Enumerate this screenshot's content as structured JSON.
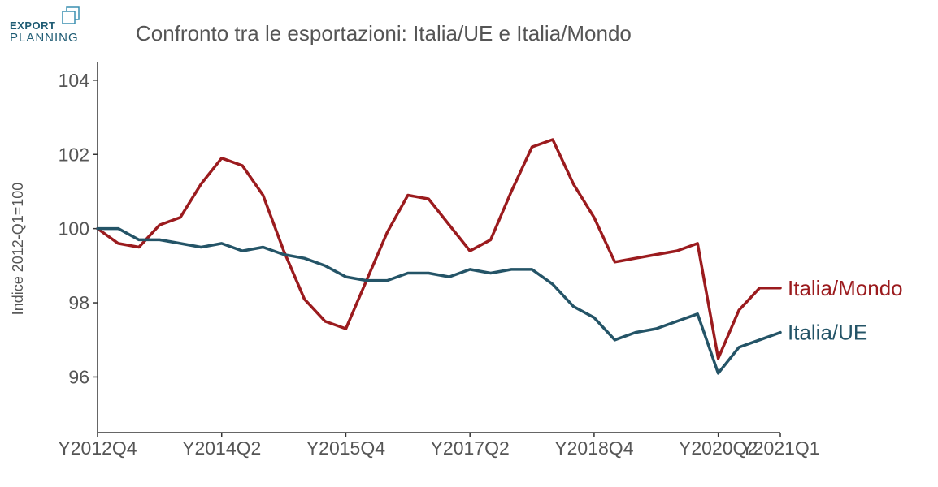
{
  "logo": {
    "line1": "EXPORT",
    "line2": "PLANNING"
  },
  "colors": {
    "mondo": "#9b1b1e",
    "ue": "#245467",
    "axis": "#333333",
    "text": "#555555"
  },
  "chart_data": {
    "type": "line",
    "title": "Confronto tra le esportazioni: Italia/UE e Italia/Mondo",
    "xlabel": "",
    "ylabel": "Indice 2012-Q1=100",
    "ylim": [
      94.5,
      104.5
    ],
    "yticks": [
      96,
      98,
      100,
      102,
      104
    ],
    "grid": false,
    "legend": "inline-right",
    "x_tick_labels": [
      "Y2012Q4",
      "Y2014Q2",
      "Y2015Q4",
      "Y2017Q2",
      "Y2018Q4",
      "Y2020Q2",
      "Y2021Q1"
    ],
    "x_tick_positions": [
      0,
      6,
      12,
      18,
      24,
      30,
      33
    ],
    "series": [
      {
        "name": "Italia/Mondo",
        "values": [
          100.0,
          99.6,
          99.5,
          100.1,
          100.3,
          101.2,
          101.9,
          101.7,
          100.9,
          99.4,
          98.1,
          97.5,
          97.3,
          98.6,
          99.9,
          100.9,
          100.8,
          100.1,
          99.4,
          99.7,
          101.0,
          102.2,
          102.4,
          101.2,
          100.3,
          99.1,
          99.2,
          99.3,
          99.4,
          99.6,
          96.5,
          97.8,
          98.4,
          98.4
        ]
      },
      {
        "name": "Italia/UE",
        "values": [
          100.0,
          100.0,
          99.7,
          99.7,
          99.6,
          99.5,
          99.6,
          99.4,
          99.5,
          99.3,
          99.2,
          99.0,
          98.7,
          98.6,
          98.6,
          98.8,
          98.8,
          98.7,
          98.9,
          98.8,
          98.9,
          98.9,
          98.5,
          97.9,
          97.6,
          97.0,
          97.2,
          97.3,
          97.5,
          97.7,
          96.1,
          96.8,
          97.0,
          97.2
        ]
      }
    ]
  }
}
